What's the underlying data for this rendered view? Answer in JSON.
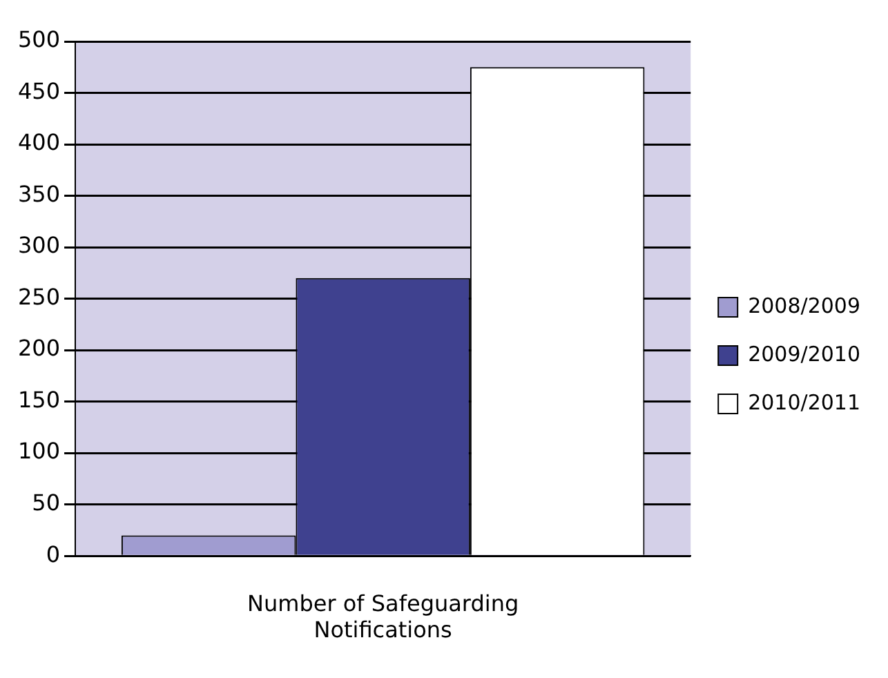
{
  "chart_data": {
    "type": "bar",
    "categories": [
      "Number of Safeguarding Notifications"
    ],
    "series": [
      {
        "name": "2008/2009",
        "color": "#a09cd0",
        "values": [
          20
        ]
      },
      {
        "name": "2009/2010",
        "color": "#3f418f",
        "values": [
          270
        ]
      },
      {
        "name": "2010/2011",
        "color": "#ffffff",
        "values": [
          475
        ]
      }
    ],
    "ylim": [
      0,
      500
    ],
    "yticks": [
      0,
      50,
      100,
      150,
      200,
      250,
      300,
      350,
      400,
      450,
      500
    ],
    "grid": "y",
    "legend": "right"
  }
}
